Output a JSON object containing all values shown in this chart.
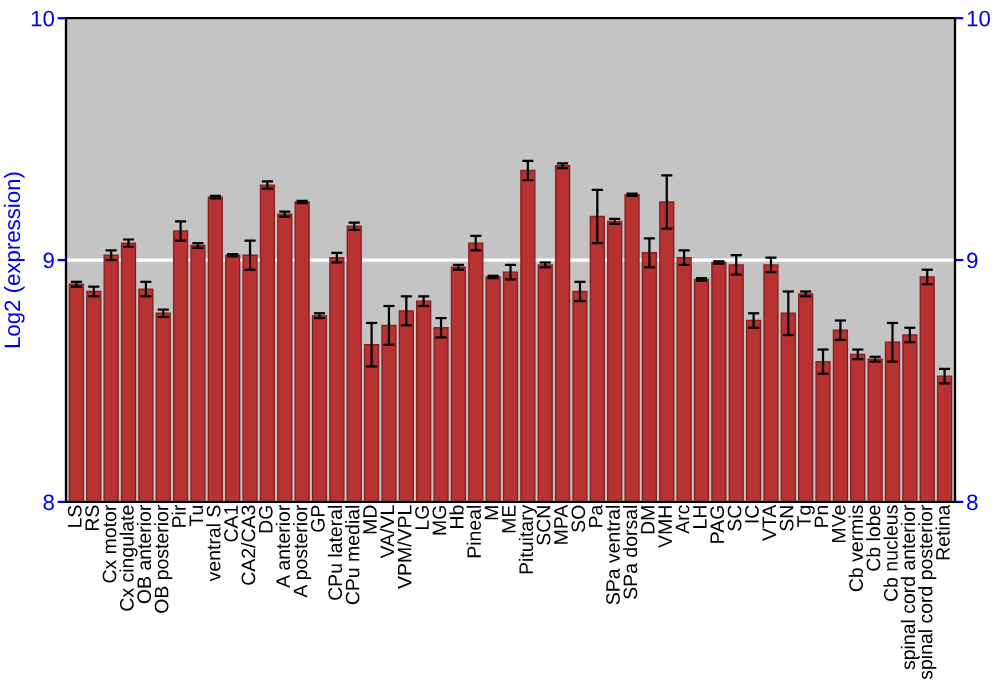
{
  "chart_data": {
    "type": "bar",
    "ylabel": "Log2 (expression)",
    "categories": [
      "LS",
      "RS",
      "Cx motor",
      "Cx cingulate",
      "OB anterior",
      "OB posterior",
      "Pir",
      "Tu",
      "ventral S",
      "CA1",
      "CA2/CA3",
      "DG",
      "A anterior",
      "A posterior",
      "GP",
      "CPu lateral",
      "CPu medial",
      "MD",
      "VA/VL",
      "VPM/VPL",
      "LG",
      "MG",
      "Hb",
      "Pineal",
      "M",
      "ME",
      "Pituitary",
      "SCN",
      "MPA",
      "SO",
      "Pa",
      "SPa ventral",
      "SPa dorsal",
      "DM",
      "VMH",
      "Arc",
      "LH",
      "PAG",
      "SC",
      "IC",
      "VTA",
      "SN",
      "Tg",
      "Pn",
      "MVe",
      "Cb vermis",
      "Cb lobe",
      "Cb nucleus",
      "spinal cord anterior",
      "spinal cord posterior",
      "Retina"
    ],
    "values": [
      8.9,
      8.87,
      9.02,
      9.07,
      8.88,
      8.78,
      9.12,
      9.06,
      9.26,
      9.02,
      9.02,
      9.31,
      9.19,
      9.24,
      8.77,
      9.01,
      9.14,
      8.65,
      8.73,
      8.79,
      8.83,
      8.72,
      8.97,
      9.07,
      8.93,
      8.95,
      9.37,
      8.98,
      9.39,
      8.87,
      9.18,
      9.16,
      9.27,
      9.03,
      9.24,
      9.01,
      8.92,
      8.99,
      8.98,
      8.75,
      8.98,
      8.78,
      8.86,
      8.58,
      8.71,
      8.61,
      8.59,
      8.66,
      8.69,
      8.93,
      8.52
    ],
    "errors": [
      0.01,
      0.02,
      0.02,
      0.015,
      0.03,
      0.015,
      0.04,
      0.01,
      0.005,
      0.005,
      0.06,
      0.015,
      0.01,
      0.005,
      0.01,
      0.02,
      0.015,
      0.09,
      0.08,
      0.06,
      0.02,
      0.04,
      0.01,
      0.03,
      0.005,
      0.03,
      0.04,
      0.01,
      0.01,
      0.04,
      0.11,
      0.01,
      0.005,
      0.06,
      0.11,
      0.03,
      0.005,
      0.005,
      0.04,
      0.03,
      0.03,
      0.09,
      0.01,
      0.05,
      0.04,
      0.02,
      0.01,
      0.08,
      0.03,
      0.03,
      0.03
    ],
    "color": "#b83232",
    "ylim": [
      8,
      10
    ],
    "yticks": [
      8,
      9,
      10
    ],
    "y2lim": [
      8,
      10
    ],
    "y2ticks": [
      8,
      9,
      10
    ],
    "grid": "y"
  }
}
